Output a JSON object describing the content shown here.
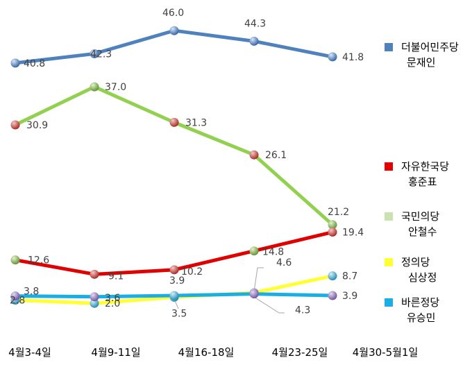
{
  "chart_data": {
    "type": "line",
    "categories": [
      "4월3-4일",
      "4월9-11일",
      "4월16-18일",
      "4월23-25일",
      "4월30-5월1일"
    ],
    "series": [
      {
        "name": "더불어민주당 문재인",
        "legend_lines": [
          "더불어민주당",
          "문재인"
        ],
        "color": "#4F81BD",
        "values": [
          40.8,
          42.3,
          46.0,
          44.3,
          41.8
        ]
      },
      {
        "name": "자유한국당 홍준표",
        "legend_lines": [
          "자유한국당",
          "홍준표"
        ],
        "color": "#E00000",
        "values": [
          12.6,
          9.1,
          10.2,
          14.8,
          19.4
        ]
      },
      {
        "name": "국민의당 안철수",
        "legend_lines": [
          "국민의당",
          "안철수"
        ],
        "color": "#92D050",
        "legend_color": "#C9E3B0",
        "values": [
          30.9,
          37.0,
          31.3,
          26.1,
          21.2
        ]
      },
      {
        "name": "정의당 심상정",
        "legend_lines": [
          "정의당",
          "심상정"
        ],
        "color": "#FFFF33",
        "values": [
          2.8,
          2.0,
          3.5,
          4.6,
          8.7
        ]
      },
      {
        "name": "바른정당 유승민",
        "legend_lines": [
          "바른정당",
          "유승민"
        ],
        "color": "#1AAEE5",
        "values": [
          3.8,
          3.6,
          3.9,
          4.3,
          3.9
        ]
      }
    ],
    "labels": [
      [
        "40.8",
        "42.3",
        "46.0",
        "44.3",
        "41.8"
      ],
      [
        "12.6",
        "9.1",
        "10.2",
        "14.8",
        "19.4"
      ],
      [
        "30.9",
        "37.0",
        "31.3",
        "26.1",
        "21.2"
      ],
      [
        "2.8",
        "2.0",
        "3.5",
        "4.6",
        "8.7"
      ],
      [
        "3.8",
        "3.6",
        "3.9",
        "4.3",
        "3.9"
      ]
    ],
    "ylim": [
      0,
      50
    ],
    "grid": false,
    "legend_position": "right"
  }
}
